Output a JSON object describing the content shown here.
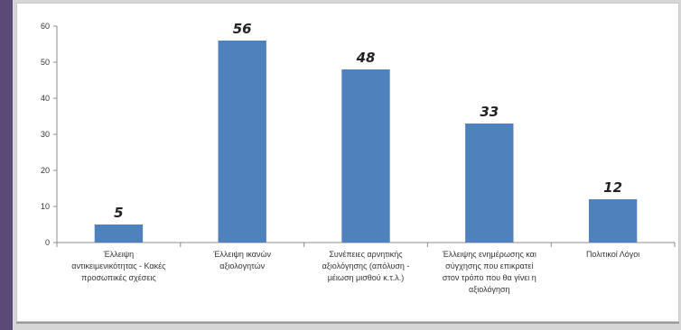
{
  "chart_data": {
    "type": "bar",
    "categories": [
      "Έλλειψη αντικειμενικότητας - Κακές προσωπικές σχέσεις",
      "Έλλειψη ικανών αξιολογητών",
      "Συνέπειες αρνητικής αξιολόγησης (απόλυση - μέιωση μισθού κ.τ.λ.)",
      "Έλλειψης ενημέρωσης και σύγχησης που επικρατεί στον τρόπο που θα γίνει η αξιολόγηση",
      "Πολιτικοί Λόγοι"
    ],
    "category_lines": [
      [
        "Έλλειψη",
        "αντικειμενικότητας - Κακές",
        "προσωπικές σχέσεις"
      ],
      [
        "Έλλειψη ικανών",
        "αξιολογητών"
      ],
      [
        "Συνέπειες αρνητικής",
        "αξιολόγησης (απόλυση -",
        "μέιωση μισθού κ.τ.λ.)"
      ],
      [
        "Έλλειψης ενημέρωσης και",
        "σύγχησης που επικρατεί",
        "στον τρόπο που θα γίνει η",
        "αξιολόγηση"
      ],
      [
        "Πολιτικοί Λόγοι"
      ]
    ],
    "values": [
      5,
      56,
      48,
      33,
      12
    ],
    "data_labels": [
      "5",
      "56",
      "48",
      "33",
      "12"
    ],
    "title": "",
    "xlabel": "",
    "ylabel": "",
    "ylim": [
      0,
      60
    ],
    "yticks": [
      "0",
      "10",
      "20",
      "30",
      "40",
      "50",
      "60"
    ],
    "grid": false,
    "legend": "none",
    "bar_color": "#4f81bd"
  }
}
